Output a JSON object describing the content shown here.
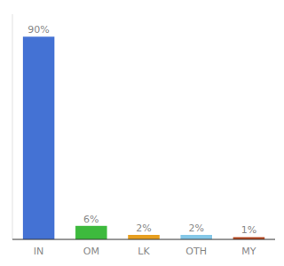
{
  "chart_data": {
    "type": "bar",
    "categories": [
      "IN",
      "OM",
      "LK",
      "OTH",
      "MY"
    ],
    "values": [
      90,
      6,
      2,
      2,
      1
    ],
    "value_labels": [
      "90%",
      "6%",
      "2%",
      "2%",
      "1%"
    ],
    "colors": [
      "#4472d4",
      "#3dba3d",
      "#e8a020",
      "#85c8e8",
      "#b84820"
    ],
    "ylim": [
      0,
      100
    ],
    "data_labels": true,
    "tick_labels": "x"
  }
}
